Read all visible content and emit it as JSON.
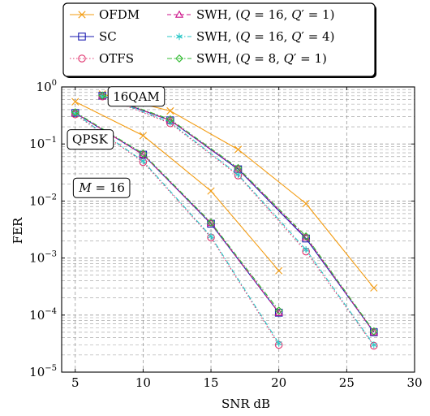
{
  "chart_data": {
    "type": "line",
    "xlabel": "SNR dB",
    "ylabel": "FER",
    "xlim": [
      4,
      30
    ],
    "ylim": [
      1e-05,
      1
    ],
    "yscale": "log",
    "grid": true,
    "legend_position": "top",
    "x_ticks": [
      "5",
      "10",
      "15",
      "20",
      "25",
      "30"
    ],
    "y_ticks": [
      {
        "base": "10",
        "exp": "0",
        "value": 1
      },
      {
        "base": "10",
        "exp": "−1",
        "value": 0.1
      },
      {
        "base": "10",
        "exp": "−2",
        "value": 0.01
      },
      {
        "base": "10",
        "exp": "−3",
        "value": 0.001
      },
      {
        "base": "10",
        "exp": "−4",
        "value": 0.0001
      },
      {
        "base": "10",
        "exp": "−5",
        "value": 1e-05
      }
    ],
    "annotations": [
      {
        "label": "16QAM",
        "x": 7.3,
        "y": 0.68
      },
      {
        "label": "QPSK",
        "x": 4.3,
        "y": 0.12
      },
      {
        "label": "M = 16",
        "x": 4.8,
        "y": 0.017
      }
    ],
    "series": [
      {
        "name": "OFDM",
        "color": "#f39c12",
        "marker": "x",
        "dash": "solid",
        "groups": [
          {
            "x": [
              5,
              10,
              15,
              20
            ],
            "y": [
              0.55,
              0.14,
              0.015,
              0.0006
            ]
          },
          {
            "x": [
              7,
              12,
              17,
              22,
              27
            ],
            "y": [
              0.75,
              0.38,
              0.08,
              0.009,
              0.0003
            ]
          }
        ]
      },
      {
        "name": "SC",
        "color": "#1a1ab0",
        "marker": "square",
        "dash": "solid",
        "groups": [
          {
            "x": [
              5,
              10,
              15,
              20
            ],
            "y": [
              0.35,
              0.065,
              0.004,
              0.00011
            ]
          },
          {
            "x": [
              7,
              12,
              17,
              22,
              27
            ],
            "y": [
              0.7,
              0.26,
              0.036,
              0.0022,
              5e-05
            ]
          }
        ]
      },
      {
        "name": "OTFS",
        "color": "#e0336e",
        "marker": "circle",
        "dash": "dotted",
        "groups": [
          {
            "x": [
              5,
              10,
              15,
              20
            ],
            "y": [
              0.33,
              0.048,
              0.0023,
              3e-05
            ]
          },
          {
            "x": [
              7,
              12,
              17,
              22,
              27
            ],
            "y": [
              0.68,
              0.23,
              0.028,
              0.0013,
              2.9e-05
            ]
          }
        ]
      },
      {
        "name": "SWH, (Q = 16, Q′ = 1)",
        "color": "#cc1188",
        "marker": "triangle",
        "dash": "dashed",
        "groups": [
          {
            "x": [
              5,
              10,
              15,
              20
            ],
            "y": [
              0.35,
              0.065,
              0.0041,
              0.00011
            ]
          },
          {
            "x": [
              7,
              12,
              17,
              22,
              27
            ],
            "y": [
              0.7,
              0.26,
              0.037,
              0.0023,
              5e-05
            ]
          }
        ]
      },
      {
        "name": "SWH, (Q = 16, Q′ = 4)",
        "color": "#2ac7c7",
        "marker": "asterisk",
        "dash": "dashdot",
        "groups": [
          {
            "x": [
              5,
              10,
              15,
              20
            ],
            "y": [
              0.34,
              0.05,
              0.0024,
              3.2e-05
            ]
          },
          {
            "x": [
              7,
              12,
              17,
              22,
              27
            ],
            "y": [
              0.69,
              0.24,
              0.029,
              0.0014,
              3e-05
            ]
          }
        ]
      },
      {
        "name": "SWH, (Q = 8, Q′ = 1)",
        "color": "#33bb33",
        "marker": "diamond",
        "dash": "dashdot",
        "groups": [
          {
            "x": [
              5,
              10,
              15,
              20
            ],
            "y": [
              0.36,
              0.068,
              0.0042,
              0.00012
            ]
          },
          {
            "x": [
              7,
              12,
              17,
              22,
              27
            ],
            "y": [
              0.71,
              0.27,
              0.038,
              0.0024,
              5.2e-05
            ]
          }
        ]
      }
    ]
  }
}
